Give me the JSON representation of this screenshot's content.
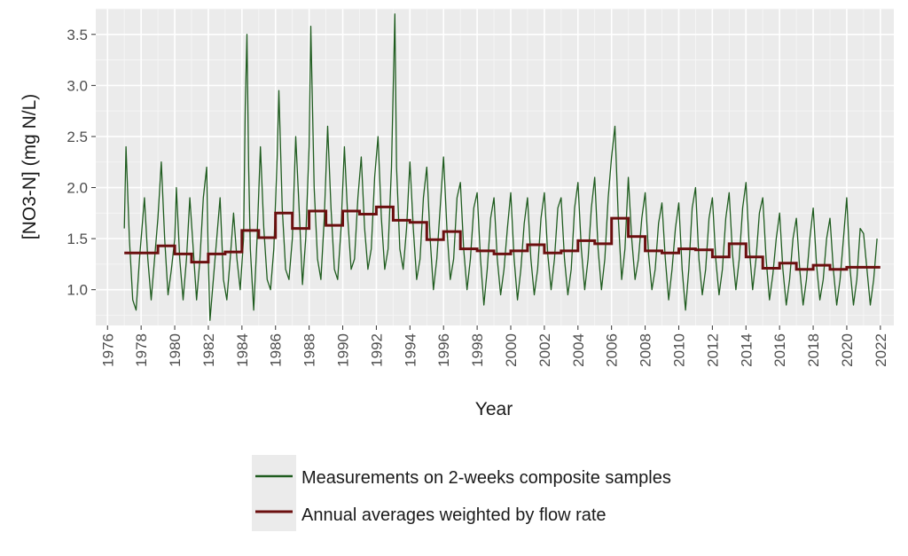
{
  "chart_data": {
    "type": "line",
    "title": "",
    "xlabel": "Year",
    "ylabel": "[NO3-N] (mg N/L)",
    "xlim": [
      1975.3,
      2022.8
    ],
    "ylim": [
      0.65,
      3.75
    ],
    "grid": true,
    "x_ticks": [
      "1976",
      "1978",
      "1980",
      "1982",
      "1984",
      "1986",
      "1988",
      "1990",
      "1992",
      "1994",
      "1996",
      "1998",
      "2000",
      "2002",
      "2004",
      "2006",
      "2008",
      "2010",
      "2012",
      "2014",
      "2016",
      "2018",
      "2020",
      "2022"
    ],
    "y_ticks": [
      "1.0",
      "1.5",
      "2.0",
      "2.5",
      "3.0",
      "3.5"
    ],
    "legend": {
      "placement": "bottom",
      "entries": [
        {
          "label": "Measurements on 2-weeks composite samples",
          "color": "#1f5c1f"
        },
        {
          "label": "Annual averages weighted by flow rate",
          "color": "#6b0f0f"
        }
      ]
    },
    "series": [
      {
        "name": "Measurements on 2-weeks composite samples",
        "color": "#1f5c1f",
        "style": "line",
        "points": [
          [
            1977.0,
            1.6
          ],
          [
            1977.1,
            2.4
          ],
          [
            1977.3,
            1.5
          ],
          [
            1977.5,
            0.9
          ],
          [
            1977.7,
            0.8
          ],
          [
            1977.9,
            1.3
          ],
          [
            1978.2,
            1.9
          ],
          [
            1978.4,
            1.3
          ],
          [
            1978.6,
            0.9
          ],
          [
            1978.8,
            1.3
          ],
          [
            1979.0,
            1.7
          ],
          [
            1979.2,
            2.25
          ],
          [
            1979.4,
            1.5
          ],
          [
            1979.6,
            0.95
          ],
          [
            1979.8,
            1.2
          ],
          [
            1980.0,
            1.5
          ],
          [
            1980.1,
            2.0
          ],
          [
            1980.3,
            1.3
          ],
          [
            1980.5,
            0.9
          ],
          [
            1980.7,
            1.3
          ],
          [
            1980.9,
            1.9
          ],
          [
            1981.1,
            1.4
          ],
          [
            1981.3,
            0.9
          ],
          [
            1981.5,
            1.3
          ],
          [
            1981.7,
            1.9
          ],
          [
            1981.9,
            2.2
          ],
          [
            1982.0,
            1.3
          ],
          [
            1982.1,
            0.7
          ],
          [
            1982.3,
            1.1
          ],
          [
            1982.5,
            1.5
          ],
          [
            1982.7,
            1.9
          ],
          [
            1982.9,
            1.1
          ],
          [
            1983.1,
            0.9
          ],
          [
            1983.3,
            1.3
          ],
          [
            1983.5,
            1.75
          ],
          [
            1983.7,
            1.3
          ],
          [
            1983.9,
            1.0
          ],
          [
            1984.1,
            1.5
          ],
          [
            1984.2,
            2.8
          ],
          [
            1984.3,
            3.5
          ],
          [
            1984.4,
            2.2
          ],
          [
            1984.5,
            1.4
          ],
          [
            1984.7,
            0.8
          ],
          [
            1984.9,
            1.5
          ],
          [
            1985.1,
            2.4
          ],
          [
            1985.3,
            1.6
          ],
          [
            1985.5,
            1.1
          ],
          [
            1985.7,
            1.0
          ],
          [
            1985.9,
            1.4
          ],
          [
            1986.1,
            2.3
          ],
          [
            1986.2,
            2.95
          ],
          [
            1986.4,
            1.8
          ],
          [
            1986.6,
            1.2
          ],
          [
            1986.8,
            1.1
          ],
          [
            1987.0,
            1.5
          ],
          [
            1987.2,
            2.5
          ],
          [
            1987.4,
            1.8
          ],
          [
            1987.6,
            1.05
          ],
          [
            1987.8,
            1.5
          ],
          [
            1988.0,
            2.4
          ],
          [
            1988.1,
            3.58
          ],
          [
            1988.3,
            2.0
          ],
          [
            1988.5,
            1.3
          ],
          [
            1988.7,
            1.1
          ],
          [
            1988.9,
            1.7
          ],
          [
            1989.1,
            2.6
          ],
          [
            1989.3,
            1.8
          ],
          [
            1989.5,
            1.2
          ],
          [
            1989.7,
            1.1
          ],
          [
            1989.9,
            1.6
          ],
          [
            1990.1,
            2.4
          ],
          [
            1990.3,
            1.7
          ],
          [
            1990.5,
            1.2
          ],
          [
            1990.7,
            1.3
          ],
          [
            1990.9,
            1.9
          ],
          [
            1991.1,
            2.3
          ],
          [
            1991.3,
            1.6
          ],
          [
            1991.5,
            1.2
          ],
          [
            1991.7,
            1.4
          ],
          [
            1991.9,
            2.1
          ],
          [
            1992.1,
            2.5
          ],
          [
            1992.3,
            1.7
          ],
          [
            1992.5,
            1.2
          ],
          [
            1992.7,
            1.4
          ],
          [
            1992.9,
            2.2
          ],
          [
            1993.1,
            3.7
          ],
          [
            1993.2,
            2.2
          ],
          [
            1993.4,
            1.4
          ],
          [
            1993.6,
            1.2
          ],
          [
            1993.8,
            1.6
          ],
          [
            1994.0,
            2.25
          ],
          [
            1994.2,
            1.6
          ],
          [
            1994.4,
            1.1
          ],
          [
            1994.6,
            1.3
          ],
          [
            1994.8,
            1.9
          ],
          [
            1995.0,
            2.2
          ],
          [
            1995.2,
            1.5
          ],
          [
            1995.4,
            1.0
          ],
          [
            1995.6,
            1.3
          ],
          [
            1995.8,
            1.8
          ],
          [
            1996.0,
            2.3
          ],
          [
            1996.2,
            1.6
          ],
          [
            1996.4,
            1.1
          ],
          [
            1996.6,
            1.3
          ],
          [
            1996.8,
            1.9
          ],
          [
            1997.0,
            2.05
          ],
          [
            1997.2,
            1.4
          ],
          [
            1997.4,
            1.0
          ],
          [
            1997.6,
            1.3
          ],
          [
            1997.8,
            1.8
          ],
          [
            1998.0,
            1.95
          ],
          [
            1998.2,
            1.3
          ],
          [
            1998.4,
            0.85
          ],
          [
            1998.6,
            1.2
          ],
          [
            1998.8,
            1.7
          ],
          [
            1999.0,
            1.9
          ],
          [
            1999.2,
            1.3
          ],
          [
            1999.4,
            0.95
          ],
          [
            1999.6,
            1.2
          ],
          [
            1999.8,
            1.6
          ],
          [
            2000.0,
            1.95
          ],
          [
            2000.2,
            1.3
          ],
          [
            2000.4,
            0.9
          ],
          [
            2000.6,
            1.2
          ],
          [
            2000.8,
            1.65
          ],
          [
            2001.0,
            1.9
          ],
          [
            2001.2,
            1.3
          ],
          [
            2001.4,
            0.95
          ],
          [
            2001.6,
            1.2
          ],
          [
            2001.8,
            1.7
          ],
          [
            2002.0,
            1.95
          ],
          [
            2002.2,
            1.35
          ],
          [
            2002.4,
            1.0
          ],
          [
            2002.6,
            1.3
          ],
          [
            2002.8,
            1.8
          ],
          [
            2003.0,
            1.9
          ],
          [
            2003.2,
            1.3
          ],
          [
            2003.4,
            0.95
          ],
          [
            2003.6,
            1.2
          ],
          [
            2003.8,
            1.8
          ],
          [
            2004.0,
            2.05
          ],
          [
            2004.2,
            1.4
          ],
          [
            2004.4,
            1.0
          ],
          [
            2004.6,
            1.3
          ],
          [
            2004.8,
            1.8
          ],
          [
            2005.0,
            2.1
          ],
          [
            2005.2,
            1.4
          ],
          [
            2005.4,
            1.0
          ],
          [
            2005.6,
            1.3
          ],
          [
            2005.8,
            1.9
          ],
          [
            2006.0,
            2.3
          ],
          [
            2006.2,
            2.6
          ],
          [
            2006.4,
            1.7
          ],
          [
            2006.6,
            1.1
          ],
          [
            2006.8,
            1.4
          ],
          [
            2007.0,
            2.1
          ],
          [
            2007.2,
            1.5
          ],
          [
            2007.4,
            1.1
          ],
          [
            2007.6,
            1.3
          ],
          [
            2007.8,
            1.7
          ],
          [
            2008.0,
            1.95
          ],
          [
            2008.2,
            1.35
          ],
          [
            2008.4,
            1.0
          ],
          [
            2008.6,
            1.2
          ],
          [
            2008.8,
            1.65
          ],
          [
            2009.0,
            1.85
          ],
          [
            2009.2,
            1.3
          ],
          [
            2009.4,
            0.9
          ],
          [
            2009.6,
            1.2
          ],
          [
            2009.8,
            1.6
          ],
          [
            2010.0,
            1.85
          ],
          [
            2010.2,
            1.2
          ],
          [
            2010.4,
            0.8
          ],
          [
            2010.6,
            1.2
          ],
          [
            2010.8,
            1.8
          ],
          [
            2011.0,
            2.0
          ],
          [
            2011.2,
            1.3
          ],
          [
            2011.4,
            0.95
          ],
          [
            2011.6,
            1.2
          ],
          [
            2011.8,
            1.7
          ],
          [
            2012.0,
            1.9
          ],
          [
            2012.2,
            1.3
          ],
          [
            2012.4,
            0.95
          ],
          [
            2012.6,
            1.2
          ],
          [
            2012.8,
            1.7
          ],
          [
            2013.0,
            1.95
          ],
          [
            2013.2,
            1.35
          ],
          [
            2013.4,
            1.0
          ],
          [
            2013.6,
            1.3
          ],
          [
            2013.8,
            1.8
          ],
          [
            2014.0,
            2.05
          ],
          [
            2014.2,
            1.4
          ],
          [
            2014.4,
            1.0
          ],
          [
            2014.6,
            1.3
          ],
          [
            2014.8,
            1.75
          ],
          [
            2015.0,
            1.9
          ],
          [
            2015.2,
            1.3
          ],
          [
            2015.4,
            0.9
          ],
          [
            2015.6,
            1.15
          ],
          [
            2015.8,
            1.5
          ],
          [
            2016.0,
            1.75
          ],
          [
            2016.2,
            1.2
          ],
          [
            2016.4,
            0.85
          ],
          [
            2016.6,
            1.1
          ],
          [
            2016.8,
            1.5
          ],
          [
            2017.0,
            1.7
          ],
          [
            2017.2,
            1.2
          ],
          [
            2017.4,
            0.85
          ],
          [
            2017.6,
            1.1
          ],
          [
            2017.8,
            1.5
          ],
          [
            2018.0,
            1.8
          ],
          [
            2018.2,
            1.25
          ],
          [
            2018.4,
            0.9
          ],
          [
            2018.6,
            1.1
          ],
          [
            2018.8,
            1.5
          ],
          [
            2019.0,
            1.7
          ],
          [
            2019.2,
            1.2
          ],
          [
            2019.4,
            0.85
          ],
          [
            2019.6,
            1.1
          ],
          [
            2019.8,
            1.5
          ],
          [
            2020.0,
            1.9
          ],
          [
            2020.2,
            1.2
          ],
          [
            2020.4,
            0.85
          ],
          [
            2020.6,
            1.1
          ],
          [
            2020.8,
            1.6
          ],
          [
            2021.0,
            1.55
          ],
          [
            2021.2,
            1.2
          ],
          [
            2021.4,
            0.85
          ],
          [
            2021.6,
            1.1
          ],
          [
            2021.8,
            1.5
          ]
        ]
      },
      {
        "name": "Annual averages weighted by flow rate",
        "color": "#6b0f0f",
        "style": "step",
        "points": [
          [
            1977,
            1.36
          ],
          [
            1978,
            1.36
          ],
          [
            1979,
            1.43
          ],
          [
            1980,
            1.35
          ],
          [
            1981,
            1.27
          ],
          [
            1982,
            1.35
          ],
          [
            1983,
            1.37
          ],
          [
            1984,
            1.58
          ],
          [
            1985,
            1.51
          ],
          [
            1986,
            1.75
          ],
          [
            1987,
            1.6
          ],
          [
            1988,
            1.77
          ],
          [
            1989,
            1.63
          ],
          [
            1990,
            1.77
          ],
          [
            1991,
            1.74
          ],
          [
            1992,
            1.81
          ],
          [
            1993,
            1.68
          ],
          [
            1994,
            1.66
          ],
          [
            1995,
            1.49
          ],
          [
            1996,
            1.57
          ],
          [
            1997,
            1.4
          ],
          [
            1998,
            1.38
          ],
          [
            1999,
            1.35
          ],
          [
            2000,
            1.38
          ],
          [
            2001,
            1.44
          ],
          [
            2002,
            1.36
          ],
          [
            2003,
            1.38
          ],
          [
            2004,
            1.48
          ],
          [
            2005,
            1.45
          ],
          [
            2006,
            1.7
          ],
          [
            2007,
            1.52
          ],
          [
            2008,
            1.38
          ],
          [
            2009,
            1.36
          ],
          [
            2010,
            1.4
          ],
          [
            2011,
            1.39
          ],
          [
            2012,
            1.32
          ],
          [
            2013,
            1.45
          ],
          [
            2014,
            1.32
          ],
          [
            2015,
            1.21
          ],
          [
            2016,
            1.26
          ],
          [
            2017,
            1.2
          ],
          [
            2018,
            1.24
          ],
          [
            2019,
            1.2
          ],
          [
            2020,
            1.22
          ],
          [
            2021,
            1.22
          ]
        ]
      }
    ]
  }
}
